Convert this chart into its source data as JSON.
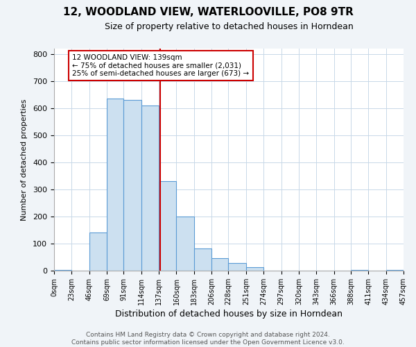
{
  "title": "12, WOODLAND VIEW, WATERLOOVILLE, PO8 9TR",
  "subtitle": "Size of property relative to detached houses in Horndean",
  "xlabel": "Distribution of detached houses by size in Horndean",
  "ylabel": "Number of detached properties",
  "bin_edges": [
    0,
    23,
    46,
    69,
    91,
    114,
    137,
    160,
    183,
    206,
    228,
    251,
    274,
    297,
    320,
    343,
    366,
    388,
    411,
    434,
    457
  ],
  "bin_counts": [
    3,
    0,
    140,
    635,
    630,
    610,
    330,
    200,
    83,
    46,
    27,
    12,
    0,
    0,
    0,
    0,
    0,
    3,
    0,
    3
  ],
  "bar_facecolor": "#cce0f0",
  "bar_edgecolor": "#5b9bd5",
  "vline_x": 139,
  "vline_color": "#cc0000",
  "annotation_title": "12 WOODLAND VIEW: 139sqm",
  "annotation_line1": "← 75% of detached houses are smaller (2,031)",
  "annotation_line2": "25% of semi-detached houses are larger (673) →",
  "annotation_box_edgecolor": "#cc0000",
  "annotation_box_facecolor": "#ffffff",
  "tick_labels": [
    "0sqm",
    "23sqm",
    "46sqm",
    "69sqm",
    "91sqm",
    "114sqm",
    "137sqm",
    "160sqm",
    "183sqm",
    "206sqm",
    "228sqm",
    "251sqm",
    "274sqm",
    "297sqm",
    "320sqm",
    "343sqm",
    "366sqm",
    "388sqm",
    "411sqm",
    "434sqm",
    "457sqm"
  ],
  "ylim": [
    0,
    820
  ],
  "yticks": [
    0,
    100,
    200,
    300,
    400,
    500,
    600,
    700,
    800
  ],
  "footer_line1": "Contains HM Land Registry data © Crown copyright and database right 2024.",
  "footer_line2": "Contains public sector information licensed under the Open Government Licence v3.0.",
  "bg_color": "#f0f4f8",
  "plot_bg_color": "#ffffff",
  "grid_color": "#c8d8e8",
  "title_fontsize": 11,
  "subtitle_fontsize": 9,
  "xlabel_fontsize": 9,
  "ylabel_fontsize": 8,
  "tick_fontsize": 7,
  "ytick_fontsize": 8,
  "footer_fontsize": 6.5
}
